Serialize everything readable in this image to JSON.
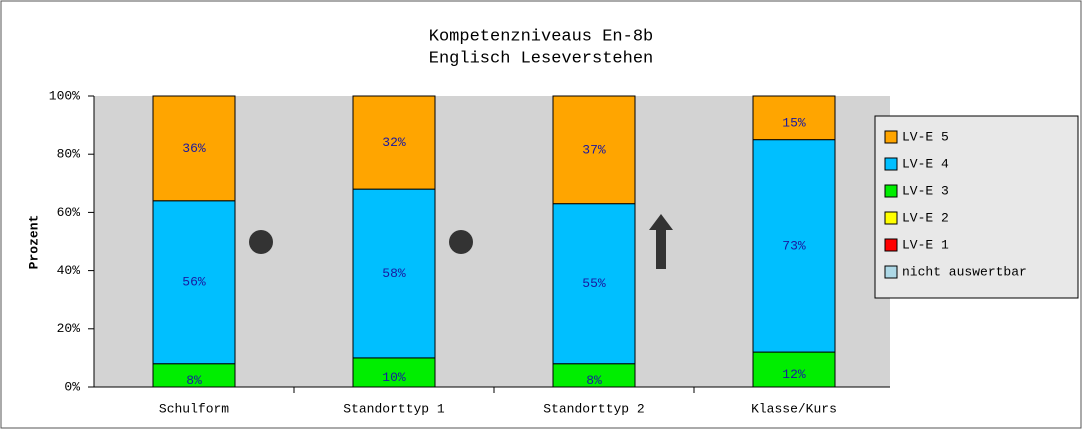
{
  "chart_data": {
    "type": "stacked_bar",
    "title": "Kompetenzniveaus  En-8b",
    "subtitle": "Englisch Leseverstehen",
    "y_label": "Prozent",
    "categories": [
      "Schulform",
      "Standorttyp 1",
      "Standorttyp 2",
      "Klasse/Kurs"
    ],
    "series": [
      {
        "name": "nicht auswertbar",
        "color": "#add8e6",
        "values": [
          0,
          0,
          0,
          0
        ]
      },
      {
        "name": "LV-E 1",
        "color": "#ff0000",
        "values": [
          0,
          0,
          0,
          0
        ]
      },
      {
        "name": "LV-E 2",
        "color": "#ffff00",
        "values": [
          0,
          0,
          0,
          0
        ]
      },
      {
        "name": "LV-E 3",
        "color": "#00ee00",
        "values": [
          8,
          10,
          8,
          12
        ],
        "value_labels": [
          "8%",
          "10%",
          "8%",
          "12%"
        ]
      },
      {
        "name": "LV-E 4",
        "color": "#00bfff",
        "values": [
          56,
          58,
          55,
          73
        ],
        "value_labels": [
          "56%",
          "58%",
          "55%",
          "73%"
        ]
      },
      {
        "name": "LV-E 5",
        "color": "#ffa500",
        "values": [
          36,
          32,
          37,
          15
        ],
        "value_labels": [
          "36%",
          "32%",
          "37%",
          "15%"
        ]
      }
    ],
    "ylim": [
      0,
      100
    ],
    "yticks": [
      {
        "value": 0,
        "label": "0%"
      },
      {
        "value": 20,
        "label": "20%"
      },
      {
        "value": 40,
        "label": "40%"
      },
      {
        "value": 60,
        "label": "60%"
      },
      {
        "value": 80,
        "label": "80%"
      },
      {
        "value": 100,
        "label": "100%"
      }
    ],
    "legend": "right"
  }
}
